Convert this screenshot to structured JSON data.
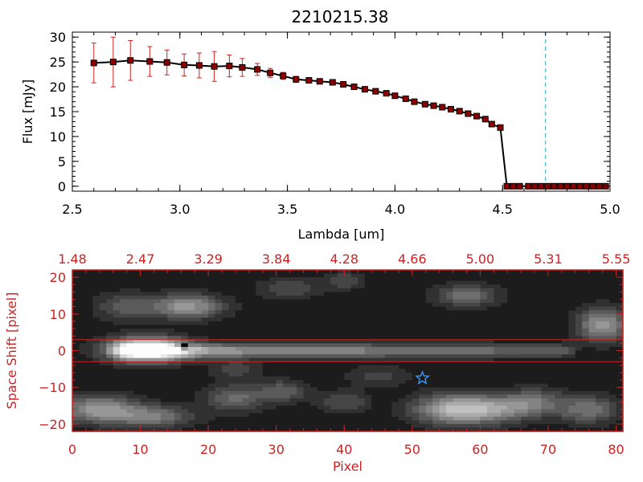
{
  "title": "2210215.38",
  "colors": {
    "axis_black": "#000000",
    "axis_red": "#cc2222",
    "errorbar_red": "#cc2222",
    "marker_fill": "#8b0000",
    "dashed_cyan": "#2aa3b8",
    "star_blue": "#3a8ee6"
  },
  "chart_data": [
    {
      "type": "line",
      "xlabel": "Lambda [um]",
      "ylabel": "Flux [mJy]",
      "xlim": [
        2.5,
        5.0
      ],
      "ylim": [
        -1,
        31
      ],
      "x_ticks": [
        2.5,
        3.0,
        3.5,
        4.0,
        4.5,
        5.0
      ],
      "x_tick_labels": [
        "2.5",
        "3.0",
        "3.5",
        "4.0",
        "4.5",
        "5.0"
      ],
      "y_ticks": [
        0,
        5,
        10,
        15,
        20,
        25,
        30
      ],
      "y_tick_labels": [
        "0",
        "5",
        "10",
        "15",
        "20",
        "25",
        "30"
      ],
      "reference_line_x": 4.7,
      "series": [
        {
          "x": [
            2.6,
            2.69,
            2.77,
            2.86,
            2.94,
            3.02,
            3.09,
            3.16,
            3.23,
            3.29,
            3.36,
            3.42,
            3.48,
            3.54,
            3.6,
            3.65,
            3.71,
            3.76,
            3.81,
            3.86,
            3.91,
            3.96,
            4.0,
            4.05,
            4.09,
            4.14,
            4.18,
            4.22,
            4.26,
            4.3,
            4.34,
            4.38,
            4.42,
            4.45,
            4.49,
            4.52,
            4.55,
            4.58,
            4.62,
            4.65,
            4.68,
            4.71,
            4.74,
            4.77,
            4.8,
            4.83,
            4.86,
            4.89,
            4.92,
            4.95,
            4.98
          ],
          "y": [
            24.8,
            25.0,
            25.3,
            25.1,
            24.9,
            24.4,
            24.3,
            24.1,
            24.2,
            23.9,
            23.5,
            22.8,
            22.2,
            21.5,
            21.3,
            21.1,
            20.9,
            20.5,
            20.0,
            19.5,
            19.1,
            18.7,
            18.2,
            17.6,
            17.0,
            16.5,
            16.2,
            15.9,
            15.5,
            15.1,
            14.6,
            14.1,
            13.5,
            12.5,
            11.8,
            0,
            0,
            0,
            0,
            0,
            0,
            0,
            0,
            0,
            0,
            0,
            0,
            0,
            0,
            0,
            0
          ],
          "err": [
            4.0,
            5.0,
            4.0,
            3.0,
            2.5,
            2.2,
            2.5,
            3.0,
            2.2,
            1.8,
            1.2,
            0.9,
            0.7,
            0.6,
            0.5,
            0.5,
            0.5,
            0.5,
            0.5,
            0.5,
            0.5,
            0.5,
            0.5,
            0.5,
            0.5,
            0.5,
            0.5,
            0.5,
            0.5,
            0.5,
            0.5,
            0.5,
            0.5,
            0.5,
            0.5,
            0.3,
            0.3,
            0.3,
            0.3,
            0.3,
            0.3,
            0.3,
            0.3,
            0.3,
            0.3,
            0.3,
            0.3,
            0.3,
            0.3,
            0.3,
            0.3
          ]
        }
      ]
    },
    {
      "type": "heatmap",
      "xlabel": "Pixel",
      "ylabel": "Space Shift [pixel]",
      "xlim": [
        0,
        81
      ],
      "ylim": [
        -22,
        22
      ],
      "x_ticks": [
        0,
        10,
        20,
        30,
        40,
        50,
        60,
        70,
        80
      ],
      "x_tick_labels": [
        "0",
        "10",
        "20",
        "30",
        "40",
        "50",
        "60",
        "70",
        "80"
      ],
      "y_ticks": [
        -20,
        -10,
        0,
        10,
        20
      ],
      "y_tick_labels": [
        "−20",
        "−10",
        "0",
        "10",
        "20"
      ],
      "top_axis_ticks": [
        0,
        10,
        20,
        30,
        40,
        50,
        60,
        70,
        80
      ],
      "top_axis_tick_labels": [
        "1.48",
        "2.47",
        "3.29",
        "3.84",
        "4.28",
        "4.66",
        "5.00",
        "5.31",
        "5.55"
      ],
      "aperture_lines_y": [
        3,
        -3
      ],
      "star_marker": [
        51.5,
        -7.5
      ],
      "features": [
        {
          "kind": "trace",
          "x0": 7,
          "x1": 73,
          "y": 0,
          "peak": 1.0
        },
        {
          "kind": "blob",
          "x": 11,
          "y": 0.3,
          "sx": 4.0,
          "sy": 2.2,
          "a": 1.0
        },
        {
          "kind": "blob",
          "x": 16.5,
          "y": 1.2,
          "sx": 0.5,
          "sy": 0.5,
          "a": -1.0
        },
        {
          "kind": "blob",
          "x": 17,
          "y": 12,
          "sx": 3.5,
          "sy": 2.2,
          "a": 0.5
        },
        {
          "kind": "blob",
          "x": 8,
          "y": 12,
          "sx": 3.0,
          "sy": 2.5,
          "a": 0.25
        },
        {
          "kind": "blob",
          "x": 32,
          "y": 17,
          "sx": 3.0,
          "sy": 2.0,
          "a": 0.2
        },
        {
          "kind": "blob",
          "x": 40,
          "y": 19,
          "sx": 2.0,
          "sy": 1.5,
          "a": 0.2
        },
        {
          "kind": "blob",
          "x": 58,
          "y": 15,
          "sx": 3.0,
          "sy": 2.0,
          "a": 0.35
        },
        {
          "kind": "blob",
          "x": 78,
          "y": 7,
          "sx": 2.5,
          "sy": 3.0,
          "a": 0.5
        },
        {
          "kind": "blob",
          "x": 4,
          "y": -16,
          "sx": 4.0,
          "sy": 2.5,
          "a": 0.5
        },
        {
          "kind": "blob",
          "x": 12,
          "y": -18,
          "sx": 4.0,
          "sy": 2.0,
          "a": 0.35
        },
        {
          "kind": "blob",
          "x": 24,
          "y": -13,
          "sx": 3.0,
          "sy": 2.5,
          "a": 0.3
        },
        {
          "kind": "blob",
          "x": 31,
          "y": -11,
          "sx": 2.5,
          "sy": 2.0,
          "a": 0.25
        },
        {
          "kind": "blob",
          "x": 40,
          "y": -14,
          "sx": 2.5,
          "sy": 2.0,
          "a": 0.2
        },
        {
          "kind": "blob",
          "x": 56,
          "y": -16,
          "sx": 4.0,
          "sy": 2.8,
          "a": 0.55
        },
        {
          "kind": "blob",
          "x": 62,
          "y": -16,
          "sx": 4.0,
          "sy": 2.5,
          "a": 0.4
        },
        {
          "kind": "blob",
          "x": 68,
          "y": -14,
          "sx": 3.0,
          "sy": 2.5,
          "a": 0.3
        },
        {
          "kind": "blob",
          "x": 76,
          "y": -16,
          "sx": 3.0,
          "sy": 2.5,
          "a": 0.35
        },
        {
          "kind": "blob",
          "x": 24,
          "y": -5,
          "sx": 2.5,
          "sy": 2.0,
          "a": 0.15
        },
        {
          "kind": "blob",
          "x": 45,
          "y": -7,
          "sx": 3.0,
          "sy": 2.0,
          "a": 0.15
        }
      ]
    }
  ]
}
